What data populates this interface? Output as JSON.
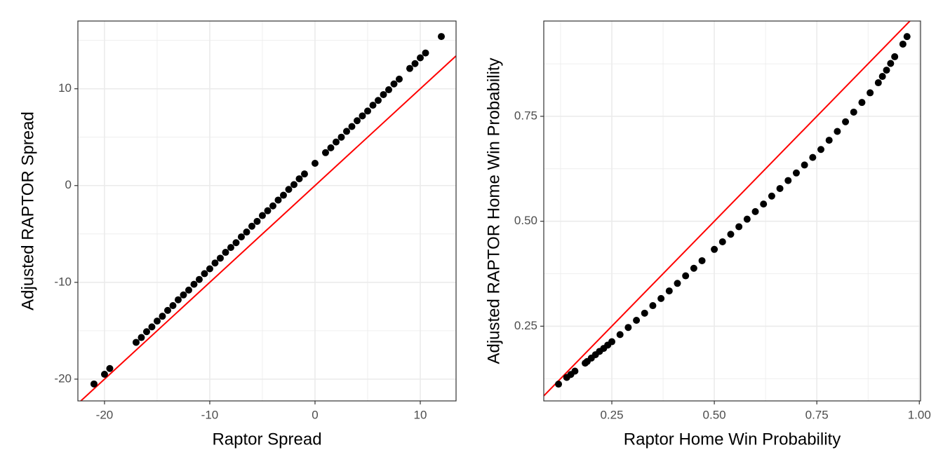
{
  "chart_data": [
    {
      "type": "scatter",
      "x_label": "Raptor Spread",
      "y_label": "Adjusted RAPTOR Spread",
      "x": [
        -21,
        -20,
        -19.5,
        -17,
        -16.5,
        -16,
        -15.5,
        -15,
        -14.5,
        -14,
        -13.5,
        -13,
        -12.5,
        -12,
        -11.5,
        -11,
        -10.5,
        -10,
        -9.5,
        -9,
        -8.5,
        -8,
        -7.5,
        -7,
        -6.5,
        -6,
        -5.5,
        -5,
        -4.5,
        -4,
        -3.5,
        -3,
        -2.5,
        -2,
        -1.5,
        -1,
        0,
        1,
        1.5,
        2,
        2.5,
        3,
        3.5,
        4,
        4.5,
        5,
        5.5,
        6,
        6.5,
        7,
        7.5,
        8,
        9,
        9.5,
        10,
        10.5,
        12
      ],
      "values": [
        -20.5,
        -19.5,
        -18.9,
        -16.2,
        -15.7,
        -15.1,
        -14.6,
        -14.0,
        -13.5,
        -12.9,
        -12.4,
        -11.8,
        -11.3,
        -10.8,
        -10.2,
        -9.7,
        -9.1,
        -8.6,
        -8.0,
        -7.5,
        -6.9,
        -6.4,
        -5.9,
        -5.3,
        -4.8,
        -4.2,
        -3.7,
        -3.1,
        -2.6,
        -2.1,
        -1.5,
        -1.0,
        -0.4,
        0.1,
        0.7,
        1.2,
        2.3,
        3.4,
        3.9,
        4.5,
        5.0,
        5.6,
        6.1,
        6.7,
        7.2,
        7.7,
        8.3,
        8.8,
        9.4,
        9.9,
        10.5,
        11.0,
        12.1,
        12.6,
        13.2,
        13.7,
        15.4
      ],
      "color": "#000000",
      "xlim": [
        -22.53,
        13.4
      ],
      "ylim": [
        -22.25,
        17.0
      ],
      "xticks": [
        -20,
        -10,
        0,
        10
      ],
      "yticks": [
        -20,
        -10,
        0,
        10
      ],
      "grid": true,
      "reference_line": {
        "slope": 1,
        "intercept": 0,
        "color": "#ff0000"
      }
    },
    {
      "type": "scatter",
      "x_label": "Raptor Home Win Probability",
      "y_label": "Adjusted RAPTOR Home Win Probability",
      "x": [
        0.12,
        0.14,
        0.15,
        0.16,
        0.185,
        0.19,
        0.2,
        0.21,
        0.22,
        0.23,
        0.24,
        0.25,
        0.27,
        0.29,
        0.31,
        0.33,
        0.35,
        0.37,
        0.39,
        0.41,
        0.43,
        0.45,
        0.47,
        0.5,
        0.52,
        0.54,
        0.56,
        0.58,
        0.6,
        0.62,
        0.64,
        0.66,
        0.68,
        0.7,
        0.72,
        0.74,
        0.76,
        0.78,
        0.8,
        0.82,
        0.84,
        0.86,
        0.88,
        0.9,
        0.91,
        0.92,
        0.93,
        0.94,
        0.96,
        0.97
      ],
      "values": [
        0.112,
        0.128,
        0.135,
        0.143,
        0.162,
        0.166,
        0.174,
        0.182,
        0.19,
        0.197,
        0.205,
        0.213,
        0.23,
        0.247,
        0.264,
        0.281,
        0.299,
        0.316,
        0.334,
        0.352,
        0.37,
        0.388,
        0.406,
        0.433,
        0.451,
        0.469,
        0.487,
        0.505,
        0.523,
        0.541,
        0.56,
        0.578,
        0.597,
        0.615,
        0.634,
        0.652,
        0.671,
        0.693,
        0.714,
        0.737,
        0.76,
        0.783,
        0.806,
        0.83,
        0.845,
        0.86,
        0.876,
        0.892,
        0.922,
        0.94
      ],
      "color": "#000000",
      "xlim": [
        0.084,
        1.003
      ],
      "ylim": [
        0.072,
        0.977
      ],
      "xticks": [
        0.25,
        {
          "value": 0.5,
          "label": "0.50"
        },
        0.75,
        {
          "value": 1,
          "label": "1.00"
        }
      ],
      "yticks": [
        0.25,
        {
          "value": 0.5,
          "label": "0.50"
        },
        0.75
      ],
      "grid": true,
      "reference_line": {
        "slope": 1,
        "intercept": 0,
        "color": "#ff0000"
      }
    }
  ]
}
